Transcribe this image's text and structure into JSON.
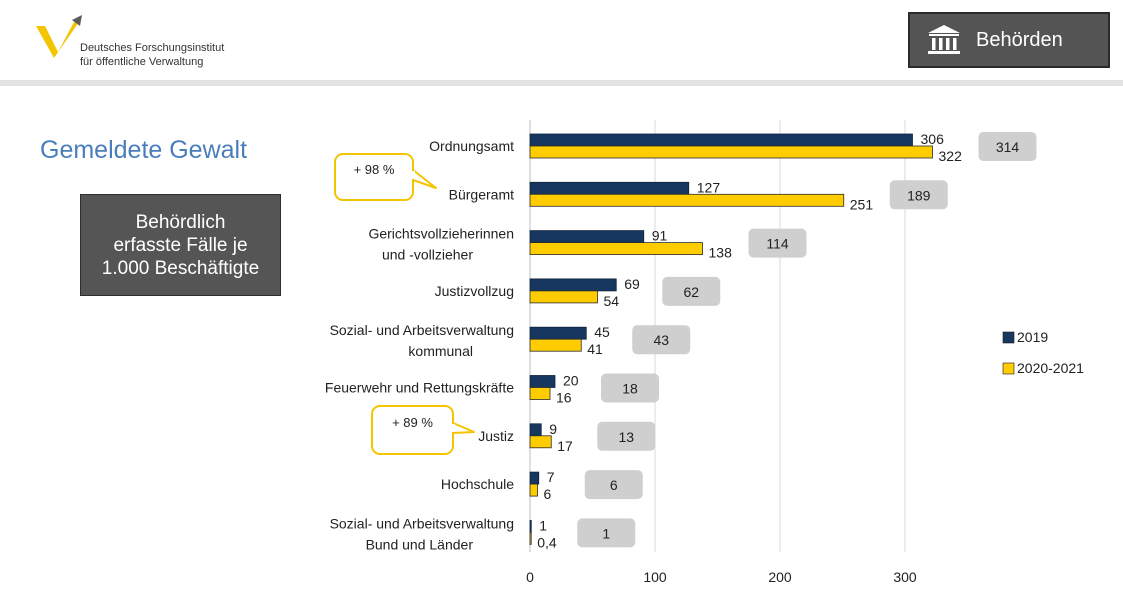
{
  "header": {
    "institute_line1": "Deutsches Forschungsinstitut",
    "institute_line2": "für öffentliche Verwaltung",
    "section_label": "Behörden",
    "section_icon": "institution-building-icon",
    "logo_icon": "dfoev-logo-icon"
  },
  "page_title": "Gemeldete Gewalt",
  "note_box": {
    "line1": "Behördlich",
    "line2": "erfasste Fälle je",
    "line3": "1.000 Beschäftigte"
  },
  "colors": {
    "series_2019": "#17375e",
    "series_2020": "#ffcc00",
    "avg_box": "#cfcfcf",
    "callout_border": "#f2c500",
    "title": "#4a7ebb"
  },
  "chart_data": {
    "type": "bar",
    "orientation": "horizontal",
    "categories": [
      [
        "Ordnungsamt"
      ],
      [
        "Bürgeramt"
      ],
      [
        "Gerichtsvollzieherinnen",
        "und -vollzieher"
      ],
      [
        "Justizvollzug"
      ],
      [
        "Sozial- und Arbeitsverwaltung",
        "kommunal"
      ],
      [
        "Feuerwehr und Rettungskräfte"
      ],
      [
        "Justiz"
      ],
      [
        "Hochschule"
      ],
      [
        "Sozial- und Arbeitsverwaltung",
        "Bund und Länder"
      ]
    ],
    "series": [
      {
        "name": "2019",
        "values": [
          306,
          127,
          91,
          69,
          45,
          20,
          9,
          7,
          1
        ],
        "labels": [
          "306",
          "127",
          "91",
          "69",
          "45",
          "20",
          "9",
          "7",
          "1"
        ]
      },
      {
        "name": "2020-2021",
        "values": [
          322,
          251,
          138,
          54,
          41,
          16,
          17,
          6,
          0.4
        ],
        "labels": [
          "322",
          "251",
          "138",
          "54",
          "41",
          "16",
          "17",
          "6",
          "0,4"
        ]
      }
    ],
    "averages": [
      "314",
      "189",
      "114",
      "62",
      "43",
      "18",
      "13",
      "6",
      "1"
    ],
    "callouts": [
      {
        "category_index": 1,
        "text": "+ 98 %"
      },
      {
        "category_index": 6,
        "text": "+ 89 %"
      }
    ],
    "xlim": [
      0,
      350
    ],
    "xticks": [
      0,
      100,
      200,
      300
    ],
    "xtick_labels": [
      "0",
      "100",
      "200",
      "300"
    ],
    "grid": true,
    "legend_position": "right"
  }
}
